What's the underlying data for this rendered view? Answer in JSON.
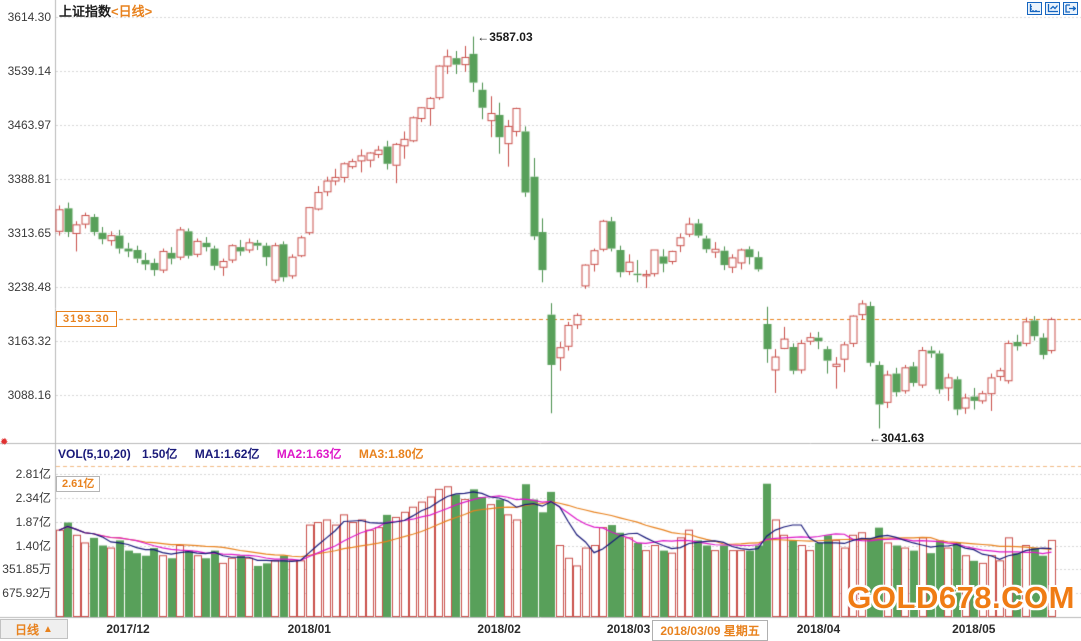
{
  "window": {
    "title": "上证指数",
    "period_tag": "<日线>"
  },
  "toolbar": {
    "icons": [
      "axis-scale-icon",
      "chart-compress-icon",
      "exit-right-icon"
    ]
  },
  "price_axis": {
    "labels": [
      {
        "text": "3614.30",
        "value": 3614.3
      },
      {
        "text": "3539.14",
        "value": 3539.14
      },
      {
        "text": "3463.97",
        "value": 3463.97
      },
      {
        "text": "3388.81",
        "value": 3388.81
      },
      {
        "text": "3313.65",
        "value": 3313.65
      },
      {
        "text": "3238.48",
        "value": 3238.48
      },
      {
        "text": "3163.32",
        "value": 3163.32
      },
      {
        "text": "3088.16",
        "value": 3088.16
      }
    ]
  },
  "volume_axis": {
    "labels": [
      {
        "text": "2.81亿",
        "value": 2.81
      },
      {
        "text": "2.34亿",
        "value": 2.34
      },
      {
        "text": "1.87亿",
        "value": 1.87
      },
      {
        "text": "1.40亿",
        "value": 1.4
      },
      {
        "text": "351.85万",
        "value": 0.935185
      },
      {
        "text": "675.92万",
        "value": 0.467592
      }
    ]
  },
  "last_price": {
    "label": "3193.30",
    "value": 3193.3
  },
  "annotations": {
    "high": {
      "text": "←3587.03",
      "value": 3587.03
    },
    "low": {
      "text": "←3041.63",
      "value": 3041.63
    }
  },
  "volume_header": {
    "formula": "VOL(5,10,20)",
    "current": "1.50亿",
    "ma1": "MA1:1.62亿",
    "ma2": "MA2:1.63亿",
    "ma3": "MA3:1.80亿"
  },
  "volume_max_label": {
    "text": "2.61亿",
    "value": 2.61
  },
  "x_axis": {
    "months": [
      {
        "label": "2017/12",
        "date": "12/01"
      },
      {
        "label": "2018/01",
        "date": "01/02"
      },
      {
        "label": "2018/02",
        "date": "02/01"
      },
      {
        "label": "2018/03",
        "date": "03/01"
      },
      {
        "label": "2018/04",
        "date": "04/02"
      },
      {
        "label": "2018/05",
        "date": "05/02"
      }
    ],
    "selected_date": {
      "label": "2018/03/09 星期五",
      "date": "03/09"
    }
  },
  "footer": {
    "tab_label": "日线",
    "tab_arrow": "▲"
  },
  "watermark": "GOLD678.COM",
  "colors": {
    "up": "#c94f4a",
    "down": "#58a05a",
    "down_border": "#4a8f4c",
    "accent": "#e8821e",
    "magenta": "#dd18c8",
    "navy": "#1a1a7a",
    "grid": "#d6d6d6",
    "axis": "#b9b9b9",
    "icon_blue": "#1565c0",
    "text": "#333333"
  },
  "chart_data": {
    "type": "candlestick",
    "title": "上证指数 日线 (SSE Composite, daily)",
    "price_ylim": [
      3021,
      3638
    ],
    "volume_unit": "亿",
    "ma_periods": [
      5,
      10,
      20
    ],
    "legend_position": "top-left of volume pane",
    "grid": "dotted horizontal",
    "columns": [
      "date",
      "open",
      "high",
      "low",
      "close",
      "volume"
    ],
    "candles": [
      [
        "11/21",
        3316,
        3352,
        3310,
        3346,
        1.7
      ],
      [
        "11/22",
        3348,
        3356,
        3308,
        3315,
        1.85
      ],
      [
        "11/23",
        3313,
        3330,
        3288,
        3325,
        1.6
      ],
      [
        "11/24",
        3326,
        3342,
        3320,
        3338,
        1.45
      ],
      [
        "11/27",
        3336,
        3340,
        3310,
        3315,
        1.55
      ],
      [
        "11/28",
        3314,
        3322,
        3298,
        3305,
        1.4
      ],
      [
        "11/29",
        3303,
        3316,
        3296,
        3310,
        1.35
      ],
      [
        "11/30",
        3310,
        3318,
        3285,
        3292,
        1.5
      ],
      [
        "12/01",
        3292,
        3300,
        3280,
        3288,
        1.3
      ],
      [
        "12/04",
        3290,
        3296,
        3272,
        3278,
        1.25
      ],
      [
        "12/05",
        3276,
        3286,
        3262,
        3270,
        1.2
      ],
      [
        "12/06",
        3272,
        3278,
        3254,
        3262,
        1.35
      ],
      [
        "12/07",
        3262,
        3292,
        3258,
        3288,
        1.2
      ],
      [
        "12/08",
        3286,
        3294,
        3270,
        3278,
        1.15
      ],
      [
        "12/11",
        3280,
        3322,
        3276,
        3318,
        1.4
      ],
      [
        "12/12",
        3316,
        3320,
        3278,
        3282,
        1.3
      ],
      [
        "12/13",
        3284,
        3306,
        3280,
        3302,
        1.2
      ],
      [
        "12/14",
        3300,
        3308,
        3288,
        3294,
        1.15
      ],
      [
        "12/15",
        3292,
        3296,
        3262,
        3268,
        1.3
      ],
      [
        "12/18",
        3266,
        3278,
        3254,
        3274,
        1.05
      ],
      [
        "12/19",
        3276,
        3298,
        3272,
        3296,
        1.15
      ],
      [
        "12/20",
        3294,
        3304,
        3282,
        3288,
        1.2
      ],
      [
        "12/21",
        3290,
        3306,
        3286,
        3300,
        1.15
      ],
      [
        "12/22",
        3300,
        3304,
        3290,
        3296,
        1.0
      ],
      [
        "12/25",
        3296,
        3300,
        3268,
        3280,
        1.05
      ],
      [
        "12/26",
        3248,
        3300,
        3244,
        3296,
        1.1
      ],
      [
        "12/27",
        3298,
        3302,
        3246,
        3252,
        1.2
      ],
      [
        "12/28",
        3254,
        3284,
        3250,
        3280,
        1.1
      ],
      [
        "12/29",
        3282,
        3310,
        3280,
        3307,
        1.1
      ],
      [
        "01/02",
        3314,
        3350,
        3311,
        3349,
        1.8
      ],
      [
        "01/03",
        3347,
        3379,
        3345,
        3370,
        1.85
      ],
      [
        "01/04",
        3371,
        3392,
        3365,
        3386,
        1.9
      ],
      [
        "01/05",
        3386,
        3403,
        3380,
        3391,
        1.8
      ],
      [
        "01/08",
        3391,
        3412,
        3384,
        3410,
        2.0
      ],
      [
        "01/09",
        3406,
        3417,
        3403,
        3413,
        1.85
      ],
      [
        "01/10",
        3414,
        3430,
        3398,
        3421,
        1.9
      ],
      [
        "01/11",
        3415,
        3426,
        3405,
        3425,
        1.7
      ],
      [
        "01/12",
        3423,
        3435,
        3418,
        3429,
        1.75
      ],
      [
        "01/15",
        3434,
        3442,
        3402,
        3410,
        2.0
      ],
      [
        "01/16",
        3408,
        3439,
        3383,
        3437,
        1.95
      ],
      [
        "01/17",
        3435,
        3455,
        3417,
        3444,
        2.05
      ],
      [
        "01/18",
        3442,
        3476,
        3440,
        3474,
        2.15
      ],
      [
        "01/19",
        3473,
        3489,
        3468,
        3488,
        2.25
      ],
      [
        "01/22",
        3487,
        3503,
        3463,
        3501,
        2.35
      ],
      [
        "01/23",
        3502,
        3547,
        3499,
        3546,
        2.5
      ],
      [
        "01/24",
        3546,
        3569,
        3535,
        3559,
        2.55
      ],
      [
        "01/25",
        3557,
        3567,
        3535,
        3548,
        2.4
      ],
      [
        "01/26",
        3548,
        3574,
        3538,
        3558,
        2.3
      ],
      [
        "01/29",
        3563,
        3587.03,
        3510,
        3523,
        2.5
      ],
      [
        "01/30",
        3513,
        3523,
        3472,
        3488,
        2.35
      ],
      [
        "01/31",
        3470,
        3504,
        3447,
        3480,
        2.2
      ],
      [
        "02/01",
        3478,
        3495,
        3424,
        3447,
        2.3
      ],
      [
        "02/02",
        3438,
        3471,
        3406,
        3462,
        2.0
      ],
      [
        "02/05",
        3455,
        3488,
        3448,
        3487,
        1.9
      ],
      [
        "02/06",
        3455,
        3462,
        3364,
        3370,
        2.6
      ],
      [
        "02/07",
        3392,
        3418,
        3304,
        3309,
        2.3
      ],
      [
        "02/08",
        3315,
        3334,
        3245,
        3262,
        2.05
      ],
      [
        "02/09",
        3200,
        3216,
        3062.74,
        3130,
        2.45
      ],
      [
        "02/12",
        3140,
        3162,
        3122,
        3154,
        1.4
      ],
      [
        "02/13",
        3156,
        3190,
        3150,
        3185,
        1.15
      ],
      [
        "02/14",
        3186,
        3202,
        3180,
        3199,
        1.0
      ],
      [
        "02/22",
        3240,
        3270,
        3236,
        3269,
        1.35
      ],
      [
        "02/23",
        3270,
        3292,
        3260,
        3289,
        1.4
      ],
      [
        "02/26",
        3291,
        3332,
        3288,
        3330,
        1.75
      ],
      [
        "02/27",
        3330,
        3336,
        3288,
        3292,
        1.8
      ],
      [
        "02/28",
        3290,
        3296,
        3252,
        3259,
        1.65
      ],
      [
        "03/01",
        3260,
        3284,
        3255,
        3273,
        1.55
      ],
      [
        "03/02",
        3257,
        3276,
        3245,
        3255,
        1.45
      ],
      [
        "03/05",
        3254,
        3262,
        3237,
        3256,
        1.3
      ],
      [
        "03/06",
        3257,
        3290,
        3253,
        3290,
        1.4
      ],
      [
        "03/07",
        3281,
        3291,
        3259,
        3271,
        1.3
      ],
      [
        "03/08",
        3274,
        3289,
        3270,
        3288,
        1.25
      ],
      [
        "03/09",
        3296,
        3313,
        3287,
        3307,
        1.55
      ],
      [
        "03/12",
        3312,
        3335,
        3308,
        3326,
        1.7
      ],
      [
        "03/13",
        3327,
        3333,
        3307,
        3310,
        1.5
      ],
      [
        "03/14",
        3306,
        3310,
        3286,
        3291,
        1.4
      ],
      [
        "03/15",
        3287,
        3301,
        3279,
        3291,
        1.3
      ],
      [
        "03/16",
        3289,
        3295,
        3262,
        3269,
        1.4
      ],
      [
        "03/19",
        3266,
        3284,
        3258,
        3279,
        1.3
      ],
      [
        "03/20",
        3272,
        3292,
        3263,
        3290,
        1.3
      ],
      [
        "03/21",
        3291,
        3295,
        3270,
        3280,
        1.3
      ],
      [
        "03/22",
        3280,
        3288,
        3260,
        3263,
        1.4
      ],
      [
        "03/23",
        3187,
        3211,
        3133,
        3152,
        2.61
      ],
      [
        "03/26",
        3123,
        3152,
        3091,
        3141,
        1.9
      ],
      [
        "03/27",
        3153,
        3183,
        3152,
        3166,
        1.6
      ],
      [
        "03/28",
        3155,
        3160,
        3117,
        3122,
        1.5
      ],
      [
        "03/29",
        3123,
        3165,
        3118,
        3160,
        1.4
      ],
      [
        "03/30",
        3163,
        3175,
        3158,
        3168,
        1.3
      ],
      [
        "04/02",
        3168,
        3176,
        3152,
        3163,
        1.45
      ],
      [
        "04/03",
        3152,
        3156,
        3118,
        3136,
        1.6
      ],
      [
        "04/04",
        3128,
        3141,
        3097,
        3131,
        1.5
      ],
      [
        "04/09",
        3138,
        3162,
        3120,
        3158,
        1.35
      ],
      [
        "04/10",
        3160,
        3199,
        3155,
        3198,
        1.6
      ],
      [
        "04/11",
        3200,
        3220,
        3193,
        3215,
        1.65
      ],
      [
        "04/12",
        3212,
        3218,
        3128,
        3133,
        1.55
      ],
      [
        "04/13",
        3130,
        3135,
        3041.63,
        3075,
        1.75
      ],
      [
        "04/16",
        3078,
        3122,
        3070,
        3116,
        1.45
      ],
      [
        "04/17",
        3118,
        3126,
        3086,
        3092,
        1.4
      ],
      [
        "04/18",
        3094,
        3130,
        3090,
        3126,
        1.35
      ],
      [
        "04/19",
        3128,
        3134,
        3100,
        3105,
        1.3
      ],
      [
        "04/20",
        3102,
        3155,
        3098,
        3150,
        1.55
      ],
      [
        "04/23",
        3150,
        3156,
        3140,
        3146,
        1.25
      ],
      [
        "04/24",
        3146,
        3150,
        3090,
        3096,
        1.5
      ],
      [
        "04/25",
        3098,
        3118,
        3080,
        3112,
        1.35
      ],
      [
        "04/26",
        3110,
        3114,
        3060,
        3068,
        1.45
      ],
      [
        "04/27",
        3070,
        3090,
        3062,
        3084,
        1.2
      ],
      [
        "05/02",
        3086,
        3098,
        3068,
        3080,
        1.1
      ],
      [
        "05/03",
        3080,
        3094,
        3076,
        3090,
        1.05
      ],
      [
        "05/04",
        3090,
        3118,
        3066,
        3112,
        1.2
      ],
      [
        "05/07",
        3114,
        3126,
        3108,
        3122,
        1.1
      ],
      [
        "05/08",
        3108,
        3164,
        3104,
        3160,
        1.55
      ],
      [
        "05/09",
        3162,
        3172,
        3150,
        3156,
        1.25
      ],
      [
        "05/10",
        3160,
        3196,
        3156,
        3190,
        1.4
      ],
      [
        "05/11",
        3192,
        3198,
        3164,
        3170,
        1.35
      ],
      [
        "05/14",
        3168,
        3174,
        3138,
        3144,
        1.2
      ],
      [
        "05/15",
        3150,
        3196,
        3146,
        3193.3,
        1.5
      ]
    ]
  }
}
